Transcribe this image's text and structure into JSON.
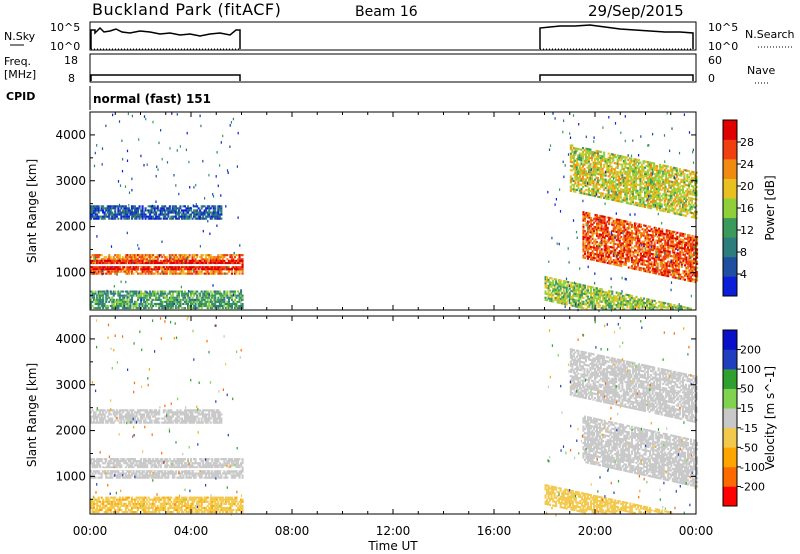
{
  "header": {
    "station": "Buckland Park (fitACF)",
    "beam": "Beam 16",
    "date": "29/Sep/2015"
  },
  "nsky_panel": {
    "left_label": "N.Sky",
    "left_ticks": [
      "10^5",
      "10^0"
    ],
    "right_label": "N.Search",
    "right_ticks": [
      "10^5",
      "10^0"
    ]
  },
  "freq_panel": {
    "left_label_1": "Freq.",
    "left_label_2": "[MHz]",
    "left_ticks": [
      "18",
      "8"
    ],
    "right_label": "Nave",
    "right_ticks": [
      "60",
      "0"
    ]
  },
  "cpid_panel": {
    "label": "CPID",
    "text": "normal (fast) 151"
  },
  "colors": {
    "power_scale": [
      "#0b1fd8",
      "#1f4fa0",
      "#2e7d7d",
      "#3a9a5a",
      "#8ecf3a",
      "#e8c020",
      "#f08a10",
      "#f04010",
      "#e00000"
    ],
    "velocity_scale": [
      "#ff0000",
      "#ff6a00",
      "#ffa500",
      "#f2c94c",
      "#c8c8c8",
      "#7fd34f",
      "#2fa02f",
      "#1f3fbf",
      "#0a10c8"
    ]
  },
  "chart_data": [
    {
      "type": "heatmap",
      "title": "Power",
      "ylabel": "Slant Range [km]",
      "xlabel": "Time UT",
      "x_ticks": [
        "00:00",
        "04:00",
        "08:00",
        "12:00",
        "16:00",
        "20:00",
        "00:00"
      ],
      "xlim_hours": [
        0,
        24
      ],
      "y_ticks": [
        1000,
        2000,
        3000,
        4000
      ],
      "ylim": [
        180,
        4500
      ],
      "colorbar": {
        "label": "Power [dB]",
        "ticks": [
          4,
          8,
          12,
          16,
          20,
          24,
          28
        ],
        "range": [
          0,
          32
        ]
      },
      "data_intervals_hours": [
        [
          0,
          6
        ],
        [
          18,
          24
        ]
      ],
      "echo_regions": [
        {
          "t": [
            0.0,
            6.0
          ],
          "range_km": [
            950,
            1400
          ],
          "value": 24
        },
        {
          "t": [
            0.0,
            6.0
          ],
          "range_km": [
            1050,
            1250
          ],
          "value": 30
        },
        {
          "t": [
            0.0,
            5.2
          ],
          "range_km": [
            2150,
            2450
          ],
          "value": 6
        },
        {
          "t": [
            0.0,
            6.0
          ],
          "range_km": [
            200,
            600
          ],
          "value": 12
        },
        {
          "t": [
            19.5,
            24.0
          ],
          "range_km": [
            1300,
            2300
          ],
          "value": 26
        },
        {
          "t": [
            19.0,
            24.0
          ],
          "range_km": [
            2700,
            3700
          ],
          "value": 18
        },
        {
          "t": [
            18.0,
            24.0
          ],
          "range_km": [
            200,
            700
          ],
          "value": 16
        }
      ],
      "reference_line_km": 1160
    },
    {
      "type": "heatmap",
      "title": "Velocity",
      "ylabel": "Slant Range [km]",
      "xlabel": "Time UT",
      "x_ticks": [
        "00:00",
        "04:00",
        "08:00",
        "12:00",
        "16:00",
        "20:00",
        "00:00"
      ],
      "xlim_hours": [
        0,
        24
      ],
      "y_ticks": [
        1000,
        2000,
        3000,
        4000
      ],
      "ylim": [
        180,
        4500
      ],
      "colorbar": {
        "label": "Velocity [m s^-1]",
        "tick_labels": [
          "200",
          "100",
          "50",
          "15",
          "-15",
          "-50",
          "-100",
          "-200"
        ]
      },
      "data_intervals_hours": [
        [
          0,
          6
        ],
        [
          18,
          24
        ]
      ],
      "echo_regions": [
        {
          "t": [
            0.0,
            6.0
          ],
          "range_km": [
            950,
            1400
          ],
          "value": 0
        },
        {
          "t": [
            0.0,
            5.2
          ],
          "range_km": [
            2150,
            2450
          ],
          "value": 0
        },
        {
          "t": [
            0.0,
            6.0
          ],
          "range_km": [
            200,
            550
          ],
          "value": -40
        },
        {
          "t": [
            19.5,
            24.0
          ],
          "range_km": [
            1300,
            2300
          ],
          "value": 0
        },
        {
          "t": [
            19.0,
            24.0
          ],
          "range_km": [
            2700,
            3700
          ],
          "value": 0
        },
        {
          "t": [
            18.0,
            24.0
          ],
          "range_km": [
            200,
            650
          ],
          "value": -30
        }
      ],
      "reference_line_km": 1160
    }
  ]
}
